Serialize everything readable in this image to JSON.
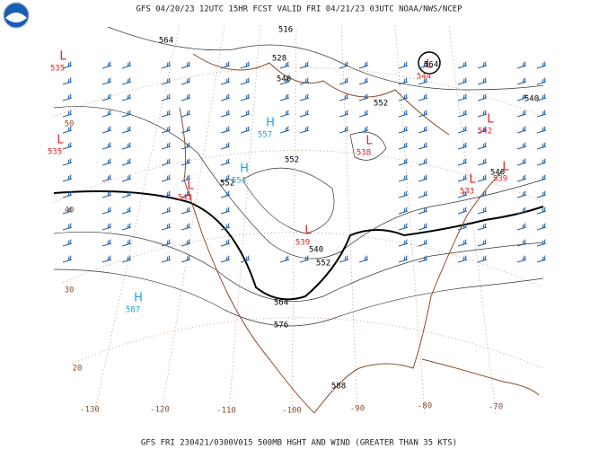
{
  "header": "GFS 04/20/23 12UTC 15HR FCST VALID FRI 04/21/23 03UTC NOAA/NWS/NCEP",
  "footer": "GFS FRI 230421/0300V015 500MB HGHT AND WIND (GREATER THAN 35 KTS)",
  "latitude_labels": [
    "50",
    "40",
    "30",
    "20"
  ],
  "longitude_labels": [
    "-130",
    "-120",
    "-110",
    "-100",
    "-90",
    "-80",
    "-70"
  ],
  "centers": [
    {
      "symbol": "L",
      "value": "535"
    },
    {
      "symbol": "L",
      "value": "535"
    },
    {
      "symbol": "H",
      "value": "557"
    },
    {
      "symbol": "H",
      "value": "553"
    },
    {
      "symbol": "L",
      "value": "543"
    },
    {
      "symbol": "L",
      "value": "539"
    },
    {
      "symbol": "H",
      "value": "587"
    },
    {
      "symbol": "L",
      "value": "538"
    },
    {
      "symbol": "L",
      "value": "542"
    },
    {
      "symbol": "L",
      "value": "539"
    },
    {
      "symbol": "L",
      "value": "533"
    },
    {
      "symbol": "L",
      "value": "544"
    }
  ],
  "contour_labels": [
    "564",
    "516",
    "528",
    "540",
    "552",
    "540",
    "552",
    "552",
    "540",
    "540",
    "552",
    "564",
    "576",
    "588",
    "564"
  ]
}
